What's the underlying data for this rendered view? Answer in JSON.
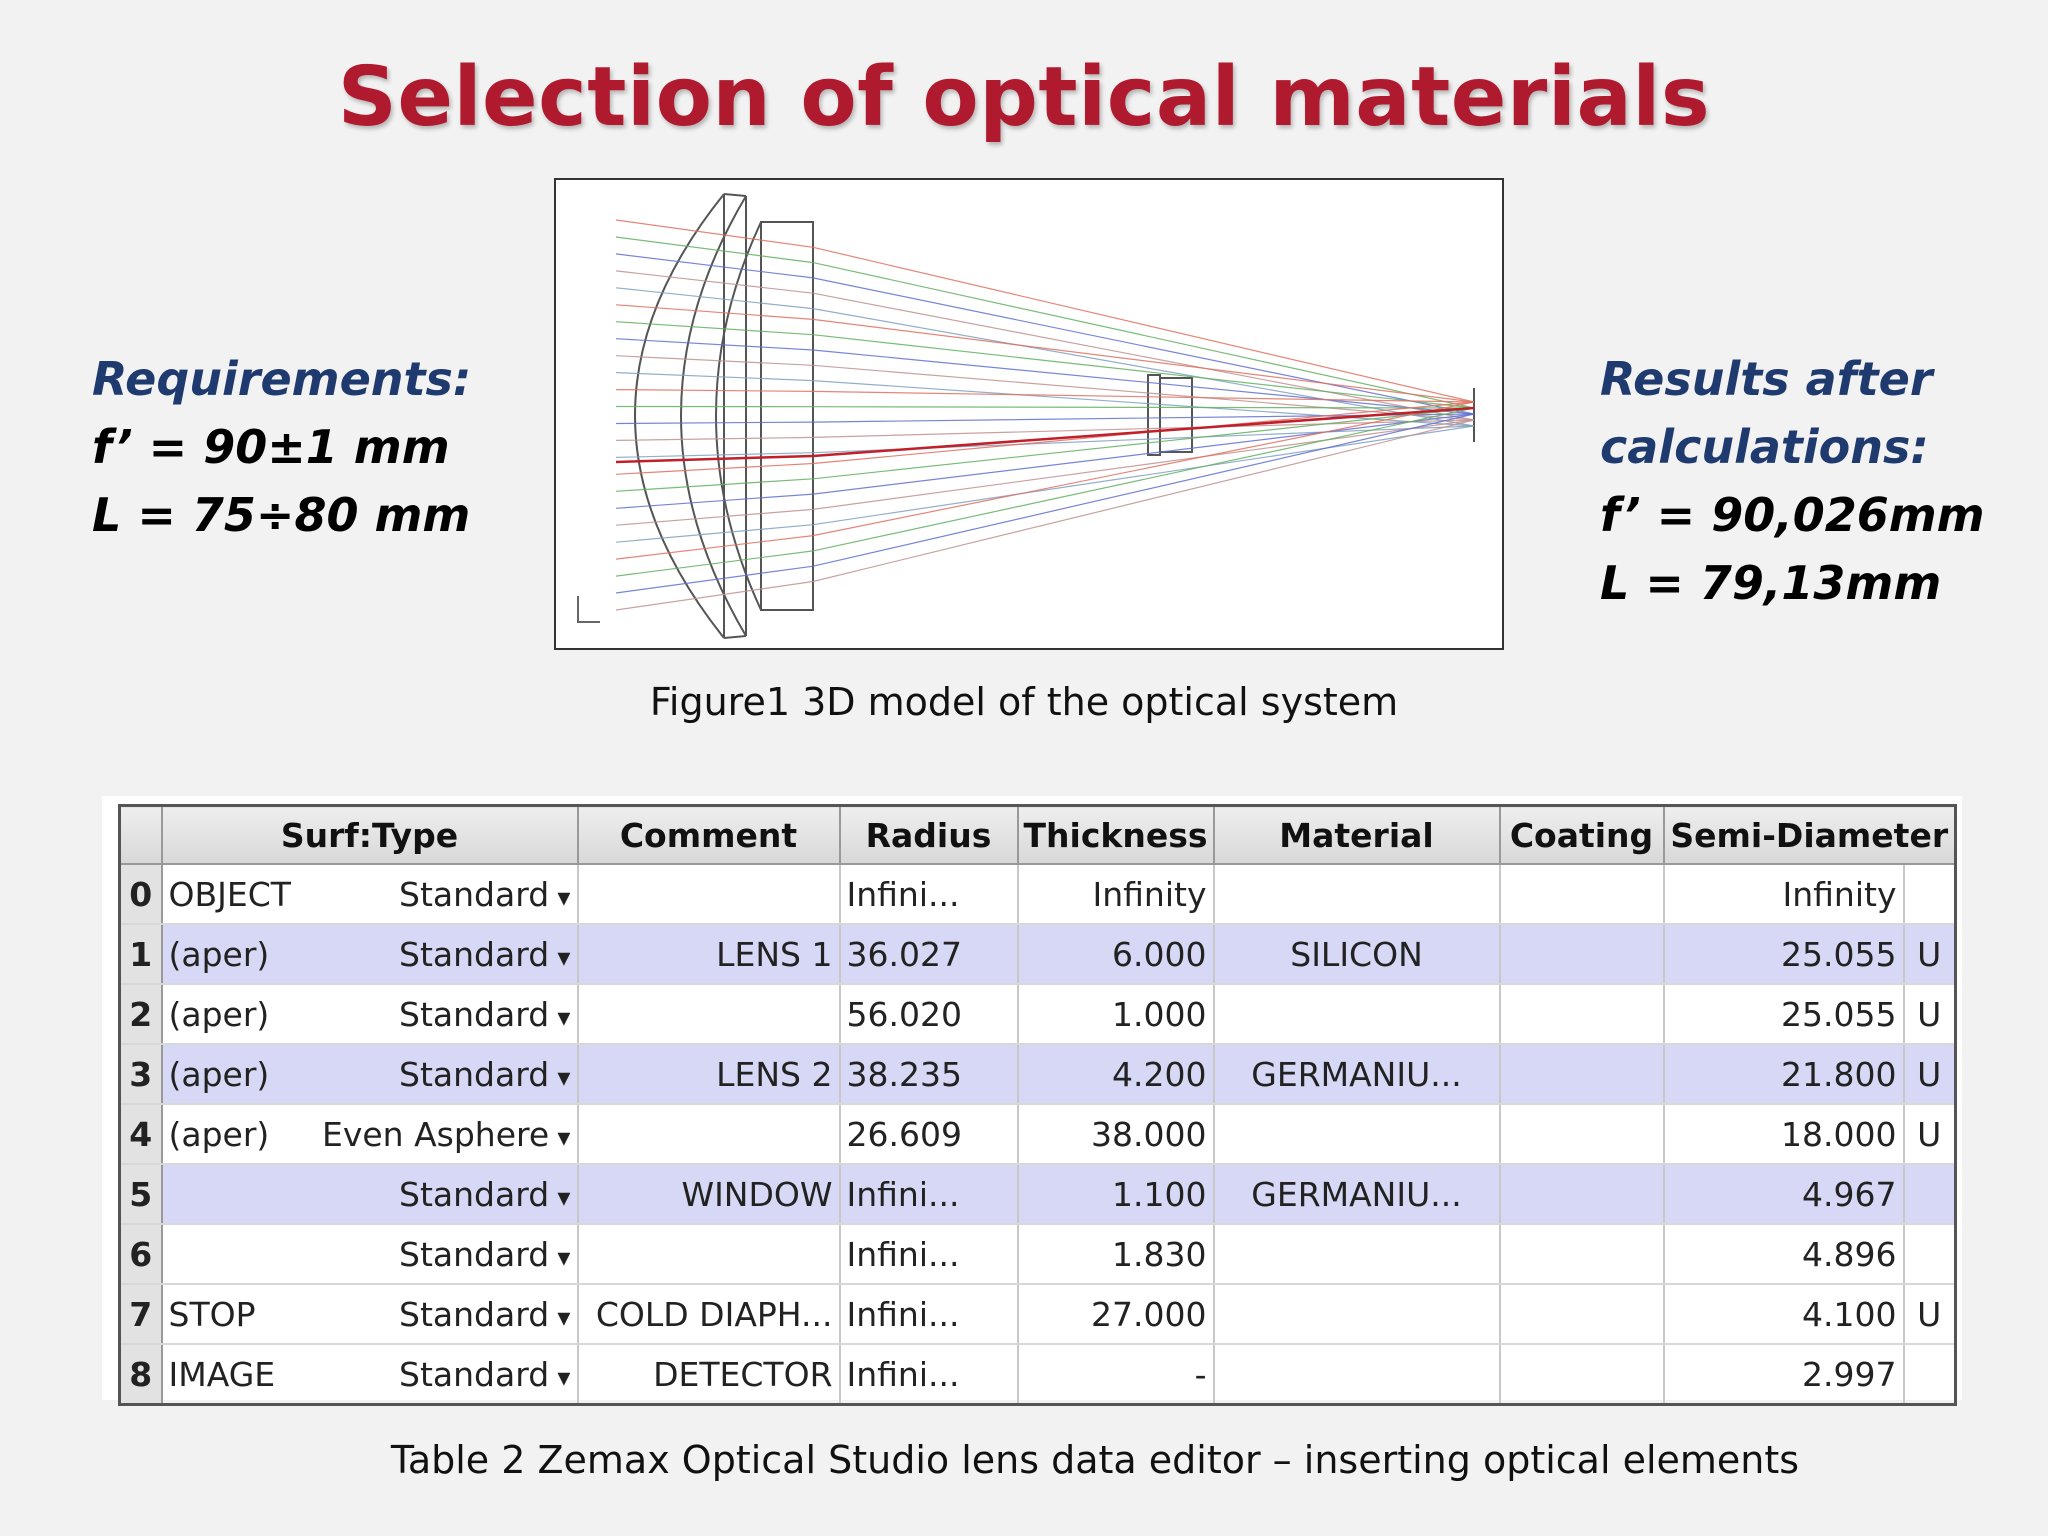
{
  "title": "Selection of optical materials",
  "requirements": {
    "heading": "Requirements:",
    "line1": "f’ = 90±1 mm",
    "line2": "L = 75÷80 mm"
  },
  "results": {
    "heading1": "Results after",
    "heading2": "calculations:",
    "line1": "f’ = 90,026mm",
    "line2": "L = 79,13mm"
  },
  "figure_caption": "Figure1 3D model of the optical system",
  "table": {
    "headers": [
      "Surf:Type",
      "Comment",
      "Radius",
      "Thickness",
      "Material",
      "Coating",
      "Semi-Diameter"
    ],
    "rows": [
      {
        "num": "0",
        "surf": "OBJECT",
        "type": "Standard",
        "comment": "",
        "radius": "Infini...",
        "thickness": "Infinity",
        "material": "",
        "coating": "",
        "semi": "Infinity",
        "flag": ""
      },
      {
        "num": "1",
        "surf": "(aper)",
        "type": "Standard",
        "comment": "LENS 1",
        "radius": "36.027",
        "thickness": "6.000",
        "material": "SILICON",
        "coating": "",
        "semi": "25.055",
        "flag": "U"
      },
      {
        "num": "2",
        "surf": "(aper)",
        "type": "Standard",
        "comment": "",
        "radius": "56.020",
        "thickness": "1.000",
        "material": "",
        "coating": "",
        "semi": "25.055",
        "flag": "U"
      },
      {
        "num": "3",
        "surf": "(aper)",
        "type": "Standard",
        "comment": "LENS 2",
        "radius": "38.235",
        "thickness": "4.200",
        "material": "GERMANIU...",
        "coating": "",
        "semi": "21.800",
        "flag": "U"
      },
      {
        "num": "4",
        "surf": "(aper)",
        "type": "Even Asphere",
        "comment": "",
        "radius": "26.609",
        "thickness": "38.000",
        "material": "",
        "coating": "",
        "semi": "18.000",
        "flag": "U"
      },
      {
        "num": "5",
        "surf": "",
        "type": "Standard",
        "comment": "WINDOW",
        "radius": "Infini...",
        "thickness": "1.100",
        "material": "GERMANIU...",
        "coating": "",
        "semi": "4.967",
        "flag": ""
      },
      {
        "num": "6",
        "surf": "",
        "type": "Standard",
        "comment": "",
        "radius": "Infini...",
        "thickness": "1.830",
        "material": "",
        "coating": "",
        "semi": "4.896",
        "flag": ""
      },
      {
        "num": "7",
        "surf": "STOP",
        "type": "Standard",
        "comment": "COLD DIAPH...",
        "radius": "Infini...",
        "thickness": "27.000",
        "material": "",
        "coating": "",
        "semi": "4.100",
        "flag": "U"
      },
      {
        "num": "8",
        "surf": "IMAGE",
        "type": "Standard",
        "comment": "DETECTOR",
        "radius": "Infini...",
        "thickness": "-",
        "material": "",
        "coating": "",
        "semi": "2.997",
        "flag": ""
      }
    ]
  },
  "table_caption": "Table 2  Zemax Optical Studio lens data editor – inserting optical elements"
}
